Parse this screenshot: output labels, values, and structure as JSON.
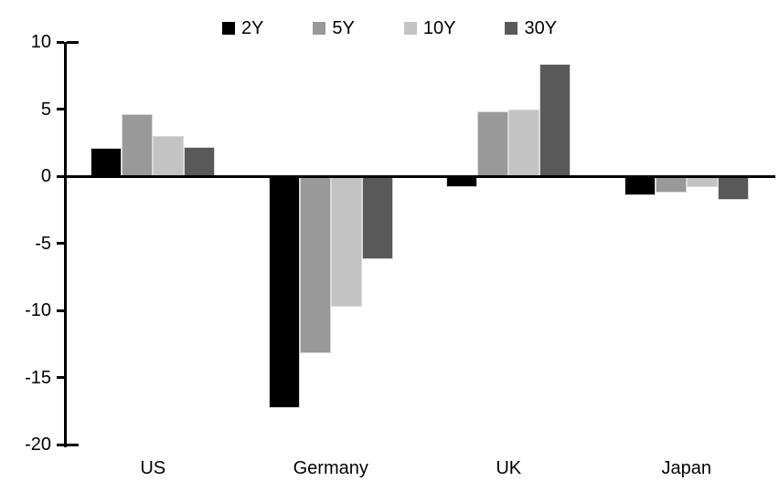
{
  "chart_data": {
    "type": "bar",
    "title": "",
    "xlabel": "",
    "ylabel": "",
    "categories": [
      "US",
      "Germany",
      "UK",
      "Japan"
    ],
    "series": [
      {
        "name": "2Y",
        "color": "#000000",
        "values": [
          2.1,
          -17.3,
          -0.8,
          -1.4
        ]
      },
      {
        "name": "5Y",
        "color": "#999999",
        "values": [
          4.6,
          -13.2,
          4.8,
          -1.2
        ]
      },
      {
        "name": "10Y",
        "color": "#c3c3c3",
        "values": [
          3.0,
          -9.7,
          5.0,
          -0.8
        ]
      },
      {
        "name": "30Y",
        "color": "#595959",
        "values": [
          2.2,
          -6.2,
          8.4,
          -1.8
        ]
      }
    ],
    "ylim": [
      -20,
      10
    ],
    "yticks": [
      10,
      5,
      0,
      -5,
      -10,
      -15,
      -20
    ],
    "grid": false,
    "legend_position": "top-center",
    "axis_color": "#000000",
    "bar_border_color": "#d9d9d9",
    "background_color": "#ffffff"
  }
}
